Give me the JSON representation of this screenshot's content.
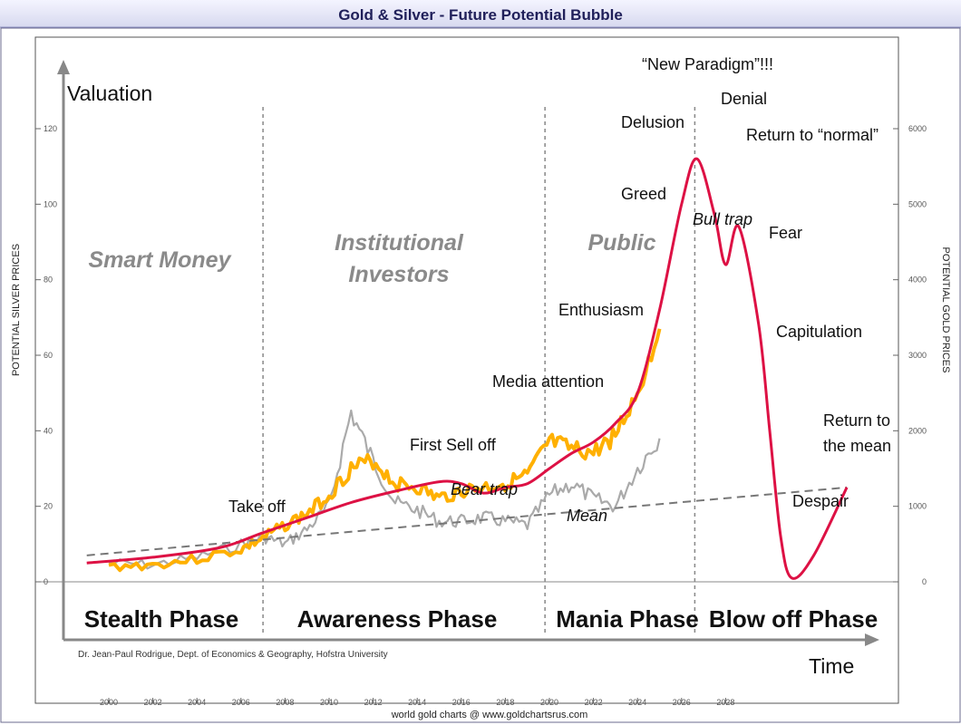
{
  "chart_data": {
    "type": "line",
    "title": "Gold & Silver - Future Potential Bubble",
    "left_axis_label": "POTENTIAL SILVER PRICES",
    "right_axis_label": "POTENTIAL GOLD PRICES",
    "left_ticks": [
      "0",
      "20",
      "40",
      "60",
      "80",
      "100",
      "120"
    ],
    "right_ticks": [
      "0",
      "1000",
      "2000",
      "3000",
      "4000",
      "5000",
      "6000"
    ],
    "ylim_left": [
      0,
      120
    ],
    "ylim_right": [
      0,
      6000
    ],
    "x_ticks": [
      "2000",
      "2002",
      "2004",
      "2006",
      "2008",
      "2010",
      "2012",
      "2014",
      "2016",
      "2018",
      "2020",
      "2022",
      "2024",
      "2026",
      "2028"
    ],
    "xlim": [
      1998,
      2035
    ],
    "valuation_label": "Valuation",
    "time_label": "Time",
    "crowd_labels": {
      "smart_money": "Smart Money",
      "institutional_1": "Institutional",
      "institutional_2": "Investors",
      "public": "Public"
    },
    "phases": [
      "Stealth Phase",
      "Awareness Phase",
      "Mania Phase",
      "Blow off Phase"
    ],
    "phase_dividers_x": [
      2007,
      2019.8,
      2026.6
    ],
    "stages": {
      "take_off": "Take off",
      "first_sell_off": "First Sell off",
      "bear_trap": "Bear trap",
      "mean": "Mean",
      "media_attention": "Media attention",
      "enthusiasm": "Enthusiasm",
      "greed": "Greed",
      "delusion": "Delusion",
      "new_paradigm": "“New Paradigm”!!!",
      "denial": "Denial",
      "bull_trap": "Bull trap",
      "return_to_normal": "Return to “normal”",
      "fear": "Fear",
      "capitulation": "Capitulation",
      "return_to_mean_1": "Return to",
      "return_to_mean_2": "the mean",
      "despair": "Despair"
    },
    "credit": "Dr. Jean-Paul Rodrigue, Dept. of Economics & Geography, Hofstra University",
    "source": "world gold charts @ www.goldchartsrus.com",
    "series": [
      {
        "role": "bubble-curve",
        "color": "#dd1144",
        "x": [
          1999,
          2002,
          2005,
          2007,
          2009,
          2011,
          2013,
          2015,
          2016,
          2017,
          2018,
          2019,
          2020,
          2021,
          2022,
          2023,
          2024,
          2025,
          2026,
          2026.7,
          2027.5,
          2028,
          2028.6,
          2029.5,
          2030,
          2030.5,
          2031,
          2032,
          2033.5
        ],
        "values": [
          5,
          6.5,
          9,
          13,
          17,
          21,
          24,
          26.5,
          26,
          23.5,
          25,
          26,
          30,
          34,
          37,
          42,
          50,
          72,
          100,
          112,
          97,
          84,
          94,
          68,
          40,
          12,
          1,
          7,
          25
        ]
      },
      {
        "role": "mean-line",
        "color": "#777777",
        "x": [
          1999,
          2033.5
        ],
        "values": [
          7,
          25
        ]
      },
      {
        "role": "gold-price",
        "color": "#ffb000",
        "x": [
          2000,
          2002,
          2004,
          2006,
          2007,
          2008,
          2009,
          2010,
          2011,
          2012,
          2013,
          2014,
          2015,
          2016,
          2017,
          2018,
          2019,
          2020,
          2021,
          2022,
          2023,
          2024,
          2025
        ],
        "values": [
          4,
          4.5,
          6,
          8.5,
          11.5,
          15,
          18,
          23,
          30,
          32,
          26,
          25,
          22,
          24,
          25,
          26,
          28,
          37,
          35,
          34,
          39,
          50,
          67
        ]
      },
      {
        "role": "silver-price",
        "color": "#aaaaaa",
        "x": [
          2000,
          2002,
          2004,
          2006,
          2007,
          2008,
          2009,
          2010,
          2011,
          2012,
          2013,
          2014,
          2015,
          2016,
          2017,
          2018,
          2019,
          2020,
          2021,
          2022,
          2023,
          2024,
          2025
        ],
        "values": [
          5,
          4.5,
          6.5,
          10,
          12,
          10,
          14,
          20,
          45,
          32,
          21,
          19,
          16,
          16,
          17,
          16,
          15,
          23,
          26,
          22,
          20,
          30,
          38
        ]
      }
    ]
  }
}
